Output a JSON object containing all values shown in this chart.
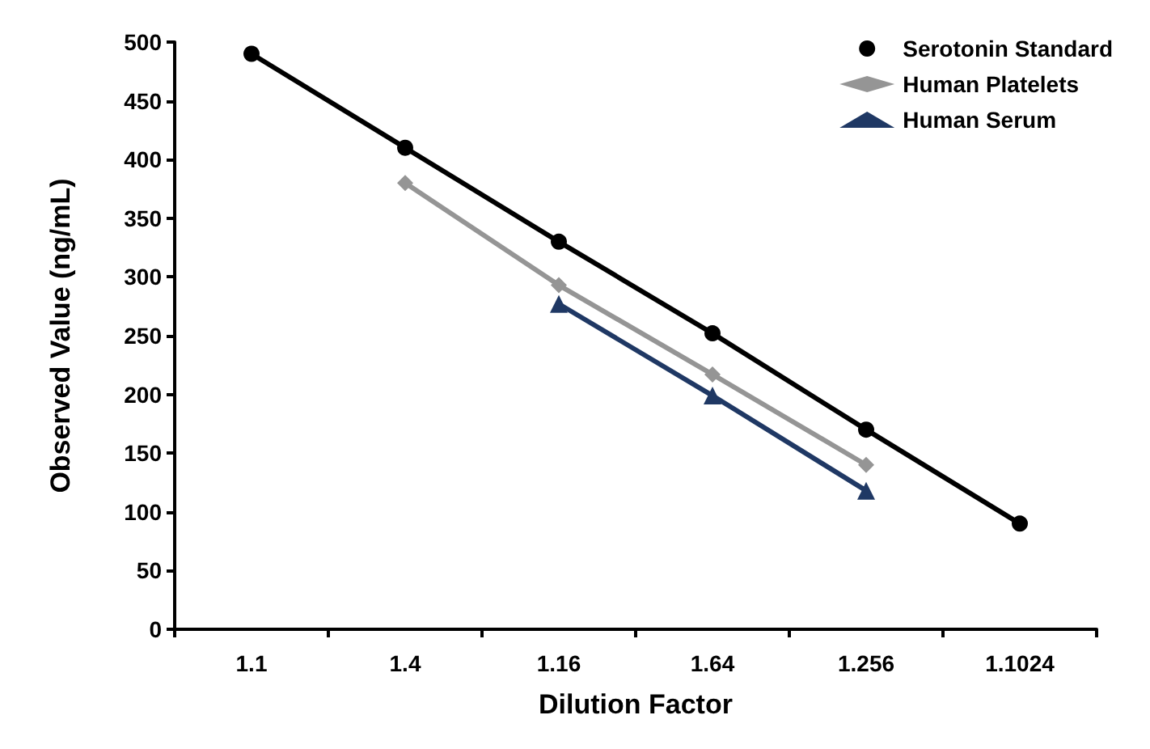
{
  "chart_data": {
    "type": "line",
    "xlabel": "Dilution Factor",
    "ylabel": "Observed Value (ng/mL)",
    "categories": [
      "1.1",
      "1.4",
      "1.16",
      "1.64",
      "1.256",
      "1.1024"
    ],
    "series": [
      {
        "name": "Serotonin Standard",
        "color": "#000000",
        "marker": "circle",
        "values": [
          490,
          410,
          330,
          252,
          170,
          90
        ]
      },
      {
        "name": "Human Platelets",
        "color": "#959595",
        "marker": "diamond",
        "values": [
          null,
          380,
          293,
          217,
          140,
          null
        ]
      },
      {
        "name": "Human Serum",
        "color": "#1f3864",
        "marker": "triangle",
        "values": [
          null,
          null,
          277,
          199,
          118,
          null
        ]
      }
    ],
    "ylim": [
      0,
      500
    ],
    "yticks": [
      0,
      50,
      100,
      150,
      200,
      250,
      300,
      350,
      400,
      450,
      500
    ],
    "grid": false,
    "legend": "top right"
  }
}
